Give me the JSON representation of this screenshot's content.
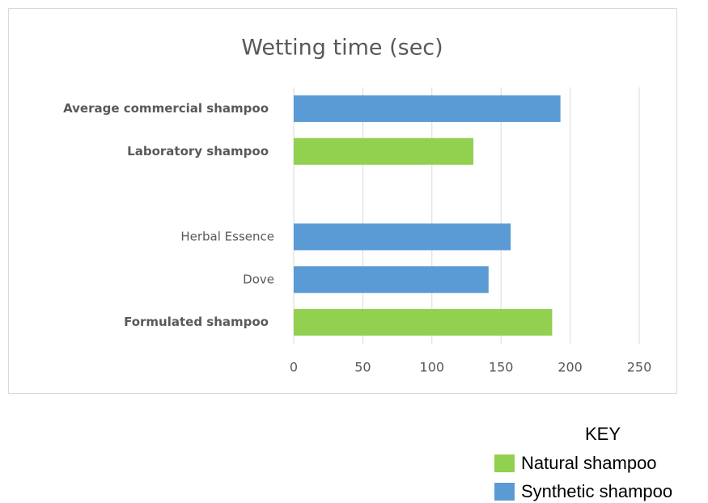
{
  "chart_data": {
    "type": "bar",
    "orientation": "horizontal",
    "title": "Wetting time (sec)",
    "categories": [
      "Average commercial shampoo",
      "Laboratory shampoo",
      null,
      "Herbal Essence",
      "Dove",
      "Formulated shampoo"
    ],
    "series": [
      {
        "name": "Natural shampoo",
        "color": "#92d050",
        "values": [
          null,
          130,
          null,
          null,
          null,
          187
        ]
      },
      {
        "name": "Synthetic shampoo",
        "color": "#5b9bd5",
        "values": [
          193,
          null,
          null,
          157,
          141,
          null
        ]
      }
    ],
    "xlim": [
      0,
      250
    ],
    "xticks": [
      0,
      50,
      100,
      150,
      200,
      250
    ],
    "grid": true,
    "legend_title": "KEY"
  }
}
